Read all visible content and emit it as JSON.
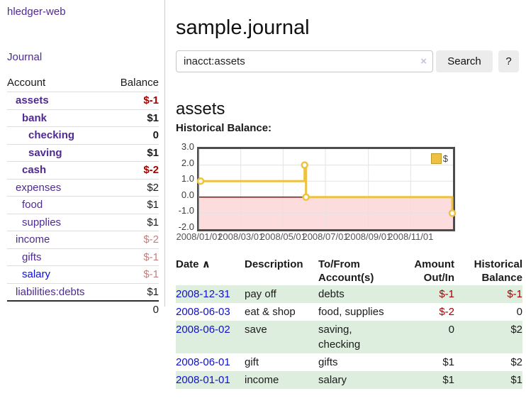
{
  "app": {
    "brand": "hledger-web",
    "nav_journal": "Journal"
  },
  "colors": {
    "link_purple": "#4f2a93",
    "link_blue": "#0f0fd0",
    "negative_strong": "#a80000",
    "negative_soft": "#c27f7f",
    "row_stripe_green": "#deeede",
    "chart_line": "#edc240",
    "chart_negative_fill": "#fcdcdc",
    "chart_zero_line": "#8f1010"
  },
  "sidebar": {
    "header": {
      "account": "Account",
      "balance": "Balance"
    },
    "accounts": [
      {
        "name": "assets",
        "balance": "$-1"
      },
      {
        "name": "bank",
        "balance": "$1"
      },
      {
        "name": "checking",
        "balance": "0"
      },
      {
        "name": "saving",
        "balance": "$1"
      },
      {
        "name": "cash",
        "balance": "$-2"
      },
      {
        "name": "expenses",
        "balance": "$2"
      },
      {
        "name": "food",
        "balance": "$1"
      },
      {
        "name": "supplies",
        "balance": "$1"
      },
      {
        "name": "income",
        "balance": "$-2"
      },
      {
        "name": "gifts",
        "balance": "$-1"
      },
      {
        "name": "salary",
        "balance": "$-1"
      },
      {
        "name": "liabilities:debts",
        "balance": "$1"
      }
    ],
    "total": "0"
  },
  "main": {
    "title": "sample.journal",
    "search": {
      "value": "inacct:assets",
      "clear_icon": "×",
      "button": "Search",
      "help": "?"
    },
    "account_heading": "assets",
    "chart_label": "Historical Balance:"
  },
  "chart_data": {
    "type": "line",
    "title": "Historical Balance",
    "step": true,
    "series": [
      {
        "name": "$",
        "color": "#edc240",
        "points": [
          [
            "2008-01-01",
            1
          ],
          [
            "2008-06-01",
            2
          ],
          [
            "2008-06-03",
            0
          ],
          [
            "2008-12-31",
            -1
          ]
        ]
      }
    ],
    "ylim": [
      -2,
      3
    ],
    "yticks": [
      "3.0",
      "2.0",
      "1.0",
      "0.0",
      "-1.0",
      "-2.0"
    ],
    "xticks": [
      "2008/01/01",
      "2008/03/01",
      "2008/05/01",
      "2008/07/01",
      "2008/09/01",
      "2008/11/01"
    ],
    "legend_position": "top-right",
    "grid": true,
    "negative_fill": "#fcdcdc",
    "zero_line_color": "#8f1010"
  },
  "register": {
    "headers": {
      "date": "Date",
      "sort_icon": "∧",
      "description": "Description",
      "account": "To/From Account(s)",
      "amount": "Amount Out/In",
      "balance": "Historical Balance"
    },
    "rows": [
      {
        "date": "2008-12-31",
        "description": "pay off",
        "account": "debts",
        "amount": "$-1",
        "balance": "$-1"
      },
      {
        "date": "2008-06-03",
        "description": "eat & shop",
        "account": "food, supplies",
        "amount": "$-2",
        "balance": "0"
      },
      {
        "date": "2008-06-02",
        "description": "save",
        "account": "saving, checking",
        "amount": "0",
        "balance": "$2"
      },
      {
        "date": "2008-06-01",
        "description": "gift",
        "account": "gifts",
        "amount": "$1",
        "balance": "$2"
      },
      {
        "date": "2008-01-01",
        "description": "income",
        "account": "salary",
        "amount": "$1",
        "balance": "$1"
      }
    ]
  }
}
